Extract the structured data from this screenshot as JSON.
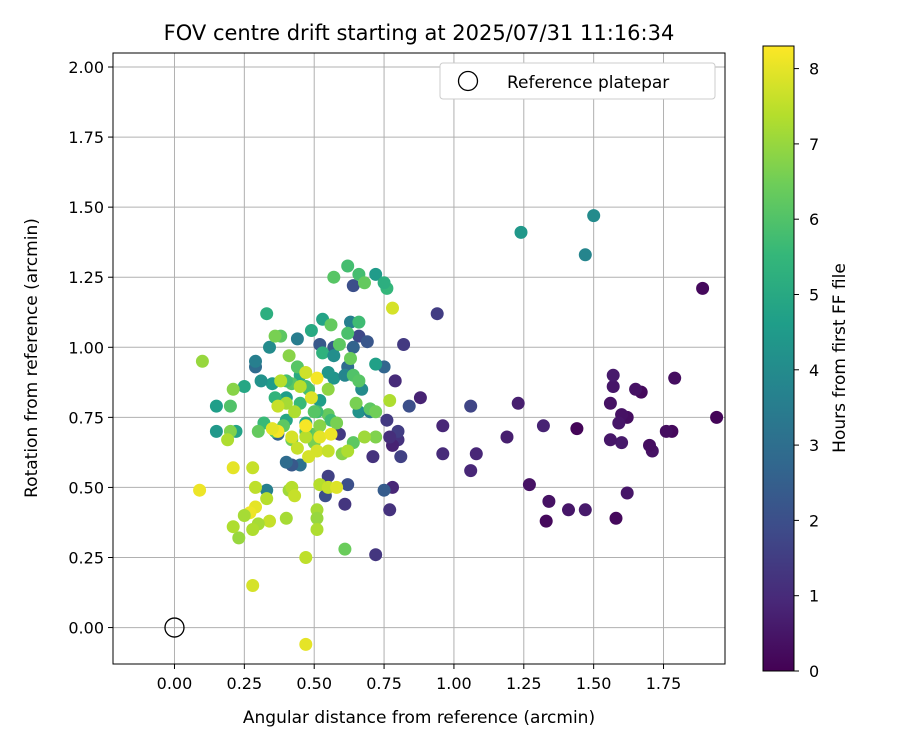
{
  "chart_data": {
    "type": "scatter",
    "title": "FOV centre drift starting at 2025/07/31 11:16:34",
    "xlabel": "Angular distance from reference (arcmin)",
    "ylabel": "Rotation from reference (arcmin)",
    "xlim": [
      -0.22,
      1.97
    ],
    "ylim": [
      -0.13,
      2.05
    ],
    "xticks": [
      "0.00",
      "0.25",
      "0.50",
      "0.75",
      "1.00",
      "1.25",
      "1.50",
      "1.75"
    ],
    "yticks": [
      "0.00",
      "0.25",
      "0.50",
      "0.75",
      "1.00",
      "1.25",
      "1.50",
      "1.75",
      "2.00"
    ],
    "grid": true,
    "legend": {
      "location": "top-right",
      "label": "Reference platepar"
    },
    "reference_point": {
      "x": 0.0,
      "y": 0.0
    },
    "colorbar": {
      "label": "Hours from first FF file",
      "colormap": "viridis",
      "range": [
        0,
        8.3
      ],
      "ticks": [
        "0",
        "1",
        "2",
        "3",
        "4",
        "5",
        "6",
        "7",
        "8"
      ]
    },
    "series": [
      {
        "points": [
          [
            1.89,
            1.21,
            0.2
          ],
          [
            1.94,
            0.75,
            0.1
          ],
          [
            1.79,
            0.89,
            0.3
          ],
          [
            1.78,
            0.7,
            0.2
          ],
          [
            1.76,
            0.7,
            0.3
          ],
          [
            1.71,
            0.63,
            0.4
          ],
          [
            1.7,
            0.65,
            0.3
          ],
          [
            1.67,
            0.84,
            0.2
          ],
          [
            1.65,
            0.85,
            0.4
          ],
          [
            1.62,
            0.75,
            0.3
          ],
          [
            1.62,
            0.48,
            0.5
          ],
          [
            1.6,
            0.76,
            0.4
          ],
          [
            1.6,
            0.66,
            0.6
          ],
          [
            1.59,
            0.73,
            0.5
          ],
          [
            1.58,
            0.39,
            0.2
          ],
          [
            1.57,
            0.86,
            0.5
          ],
          [
            1.57,
            0.9,
            0.6
          ],
          [
            1.56,
            0.8,
            0.4
          ],
          [
            1.56,
            0.67,
            0.5
          ],
          [
            1.47,
            0.42,
            0.6
          ],
          [
            1.44,
            0.71,
            0.1
          ],
          [
            1.41,
            0.42,
            0.5
          ],
          [
            1.34,
            0.45,
            0.4
          ],
          [
            1.33,
            0.38,
            0.2
          ],
          [
            1.32,
            0.72,
            0.8
          ],
          [
            1.27,
            0.51,
            0.4
          ],
          [
            1.23,
            0.8,
            0.7
          ],
          [
            1.19,
            0.68,
            0.7
          ],
          [
            1.08,
            0.62,
            0.9
          ],
          [
            1.06,
            0.56,
            0.9
          ],
          [
            1.06,
            0.79,
            1.7
          ],
          [
            0.96,
            0.62,
            1.0
          ],
          [
            0.96,
            0.72,
            0.9
          ],
          [
            0.94,
            1.12,
            1.5
          ],
          [
            0.88,
            0.82,
            0.8
          ],
          [
            0.84,
            0.79,
            2.0
          ],
          [
            0.82,
            1.01,
            1.4
          ],
          [
            0.81,
            0.61,
            1.6
          ],
          [
            0.8,
            0.67,
            1.2
          ],
          [
            0.8,
            0.7,
            1.5
          ],
          [
            0.79,
            0.88,
            1.0
          ],
          [
            0.78,
            0.65,
            0.8
          ],
          [
            0.78,
            0.5,
            0.9
          ],
          [
            0.77,
            0.42,
            1.2
          ],
          [
            0.77,
            0.68,
            1.1
          ],
          [
            0.76,
            0.74,
            1.4
          ],
          [
            0.75,
            0.49,
            2.4
          ],
          [
            0.72,
            0.26,
            1.3
          ],
          [
            0.71,
            0.61,
            1.2
          ],
          [
            0.66,
            1.04,
            1.8
          ],
          [
            0.64,
            1.22,
            2.0
          ],
          [
            0.62,
            0.51,
            2.0
          ],
          [
            0.61,
            0.44,
            1.3
          ],
          [
            0.59,
            0.69,
            1.4
          ],
          [
            0.57,
            1.0,
            2.3
          ],
          [
            0.55,
            0.54,
            1.6
          ],
          [
            0.54,
            0.47,
            2.0
          ],
          [
            0.52,
            1.01,
            2.3
          ],
          [
            0.45,
            0.58,
            3.1
          ],
          [
            0.42,
            0.58,
            2.3
          ],
          [
            0.4,
            0.59,
            2.9
          ],
          [
            0.37,
            0.69,
            2.6
          ],
          [
            0.33,
            0.49,
            3.6
          ],
          [
            0.29,
            0.93,
            2.9
          ],
          [
            0.64,
            1.0,
            2.6
          ],
          [
            0.69,
            1.02,
            2.2
          ],
          [
            0.62,
            0.93,
            2.9
          ],
          [
            0.75,
            0.93,
            2.7
          ],
          [
            1.5,
            1.47,
            4.0
          ],
          [
            1.24,
            1.41,
            4.4
          ],
          [
            1.47,
            1.33,
            3.8
          ],
          [
            0.72,
            1.26,
            4.5
          ],
          [
            0.29,
            0.95,
            3.6
          ],
          [
            0.35,
            0.87,
            4.5
          ],
          [
            0.31,
            0.88,
            4.2
          ],
          [
            0.22,
            0.7,
            4.8
          ],
          [
            0.15,
            0.79,
            4.6
          ],
          [
            0.15,
            0.7,
            4.4
          ],
          [
            0.25,
            0.86,
            4.9
          ],
          [
            0.4,
            0.82,
            4.6
          ],
          [
            0.44,
            1.03,
            3.5
          ],
          [
            0.34,
            1.0,
            4.0
          ],
          [
            0.33,
            1.12,
            5.2
          ],
          [
            0.49,
            1.06,
            5.0
          ],
          [
            0.53,
            0.98,
            5.3
          ],
          [
            0.53,
            1.1,
            4.8
          ],
          [
            0.57,
            0.97,
            4.1
          ],
          [
            0.57,
            0.89,
            4.3
          ],
          [
            0.61,
            0.9,
            3.8
          ],
          [
            0.63,
            1.09,
            3.6
          ],
          [
            0.67,
            0.85,
            4.0
          ],
          [
            0.66,
            0.77,
            4.2
          ],
          [
            0.7,
            0.77,
            3.6
          ],
          [
            0.72,
            0.94,
            4.7
          ],
          [
            0.45,
            0.9,
            5.0
          ],
          [
            0.52,
            0.81,
            4.6
          ],
          [
            0.55,
            0.91,
            4.3
          ],
          [
            0.4,
            0.74,
            4.9
          ],
          [
            0.36,
            0.82,
            5.4
          ],
          [
            0.32,
            0.73,
            5.6
          ],
          [
            0.47,
            0.73,
            5.0
          ],
          [
            0.57,
            1.25,
            6.1
          ],
          [
            0.62,
            1.29,
            5.8
          ],
          [
            0.66,
            1.26,
            5.8
          ],
          [
            0.68,
            1.23,
            6.3
          ],
          [
            0.76,
            1.21,
            5.5
          ],
          [
            0.75,
            1.23,
            5.2
          ],
          [
            0.66,
            1.09,
            5.7
          ],
          [
            0.56,
            1.08,
            6.3
          ],
          [
            0.62,
            1.05,
            5.9
          ],
          [
            0.59,
            1.01,
            6.2
          ],
          [
            0.63,
            0.96,
            6.4
          ],
          [
            0.64,
            0.9,
            6.0
          ],
          [
            0.66,
            0.88,
            6.1
          ],
          [
            0.7,
            0.78,
            6.2
          ],
          [
            0.65,
            0.8,
            6.6
          ],
          [
            0.55,
            0.76,
            6.3
          ],
          [
            0.56,
            0.74,
            5.7
          ],
          [
            0.51,
            0.77,
            5.7
          ],
          [
            0.48,
            0.85,
            5.9
          ],
          [
            0.45,
            0.8,
            5.6
          ],
          [
            0.42,
            0.87,
            6.1
          ],
          [
            0.4,
            0.88,
            5.8
          ],
          [
            0.38,
            1.04,
            6.2
          ],
          [
            0.36,
            1.04,
            6.6
          ],
          [
            0.41,
            0.97,
            6.8
          ],
          [
            0.44,
            0.93,
            6.1
          ],
          [
            0.47,
            0.86,
            5.8
          ],
          [
            0.5,
            0.77,
            6.1
          ],
          [
            0.49,
            0.69,
            6.3
          ],
          [
            0.47,
            0.7,
            6.0
          ],
          [
            0.42,
            0.67,
            6.5
          ],
          [
            0.39,
            0.72,
            6.2
          ],
          [
            0.36,
            0.7,
            6.0
          ],
          [
            0.3,
            0.7,
            6.3
          ],
          [
            0.2,
            0.7,
            6.7
          ],
          [
            0.2,
            0.79,
            6.0
          ],
          [
            0.21,
            0.85,
            6.8
          ],
          [
            0.1,
            0.95,
            7.0
          ],
          [
            0.61,
            0.28,
            6.4
          ],
          [
            0.6,
            0.62,
            6.8
          ],
          [
            0.64,
            0.66,
            6.2
          ],
          [
            0.72,
            0.68,
            6.7
          ],
          [
            0.68,
            0.68,
            7.1
          ],
          [
            0.72,
            0.77,
            6.5
          ],
          [
            0.77,
            0.81,
            7.3
          ],
          [
            0.78,
            1.14,
            7.8
          ],
          [
            0.55,
            0.85,
            6.9
          ],
          [
            0.58,
            0.73,
            6.6
          ],
          [
            0.52,
            0.72,
            6.8
          ],
          [
            0.5,
            0.66,
            6.6
          ],
          [
            0.47,
            0.68,
            7.4
          ],
          [
            0.51,
            0.63,
            7.8
          ],
          [
            0.51,
            0.42,
            7.2
          ],
          [
            0.51,
            0.39,
            7.0
          ],
          [
            0.51,
            0.35,
            7.3
          ],
          [
            0.52,
            0.51,
            7.4
          ],
          [
            0.52,
            0.68,
            8.0
          ],
          [
            0.55,
            0.63,
            7.6
          ],
          [
            0.55,
            0.5,
            7.6
          ],
          [
            0.58,
            0.5,
            7.9
          ],
          [
            0.62,
            0.63,
            7.3
          ],
          [
            0.56,
            0.69,
            8.1
          ],
          [
            0.51,
            0.89,
            8.2
          ],
          [
            0.49,
            0.82,
            7.9
          ],
          [
            0.47,
            0.72,
            8.2
          ],
          [
            0.48,
            0.61,
            7.8
          ],
          [
            0.47,
            0.91,
            7.7
          ],
          [
            0.45,
            0.86,
            7.4
          ],
          [
            0.43,
            0.77,
            7.3
          ],
          [
            0.44,
            0.64,
            7.6
          ],
          [
            0.42,
            0.68,
            7.8
          ],
          [
            0.4,
            0.8,
            7.2
          ],
          [
            0.38,
            0.88,
            7.4
          ],
          [
            0.37,
            0.79,
            7.6
          ],
          [
            0.37,
            0.7,
            8.2
          ],
          [
            0.35,
            0.71,
            8.0
          ],
          [
            0.33,
            0.46,
            7.4
          ],
          [
            0.34,
            0.38,
            7.6
          ],
          [
            0.3,
            0.37,
            7.2
          ],
          [
            0.29,
            0.5,
            7.5
          ],
          [
            0.28,
            0.57,
            7.6
          ],
          [
            0.28,
            0.35,
            7.3
          ],
          [
            0.28,
            0.15,
            7.8
          ],
          [
            0.29,
            0.43,
            8.0
          ],
          [
            0.27,
            0.41,
            8.1
          ],
          [
            0.25,
            0.4,
            7.2
          ],
          [
            0.23,
            0.32,
            7.0
          ],
          [
            0.21,
            0.36,
            7.3
          ],
          [
            0.21,
            0.57,
            8.0
          ],
          [
            0.19,
            0.67,
            7.3
          ],
          [
            0.09,
            0.49,
            8.1
          ],
          [
            0.4,
            0.39,
            7.2
          ],
          [
            0.41,
            0.49,
            7.1
          ],
          [
            0.42,
            0.5,
            7.4
          ],
          [
            0.43,
            0.47,
            7.6
          ],
          [
            0.47,
            0.25,
            7.5
          ],
          [
            0.47,
            -0.06,
            8.0
          ]
        ]
      }
    ],
    "point_format": "[x_arcmin, y_arcmin, hours]"
  }
}
